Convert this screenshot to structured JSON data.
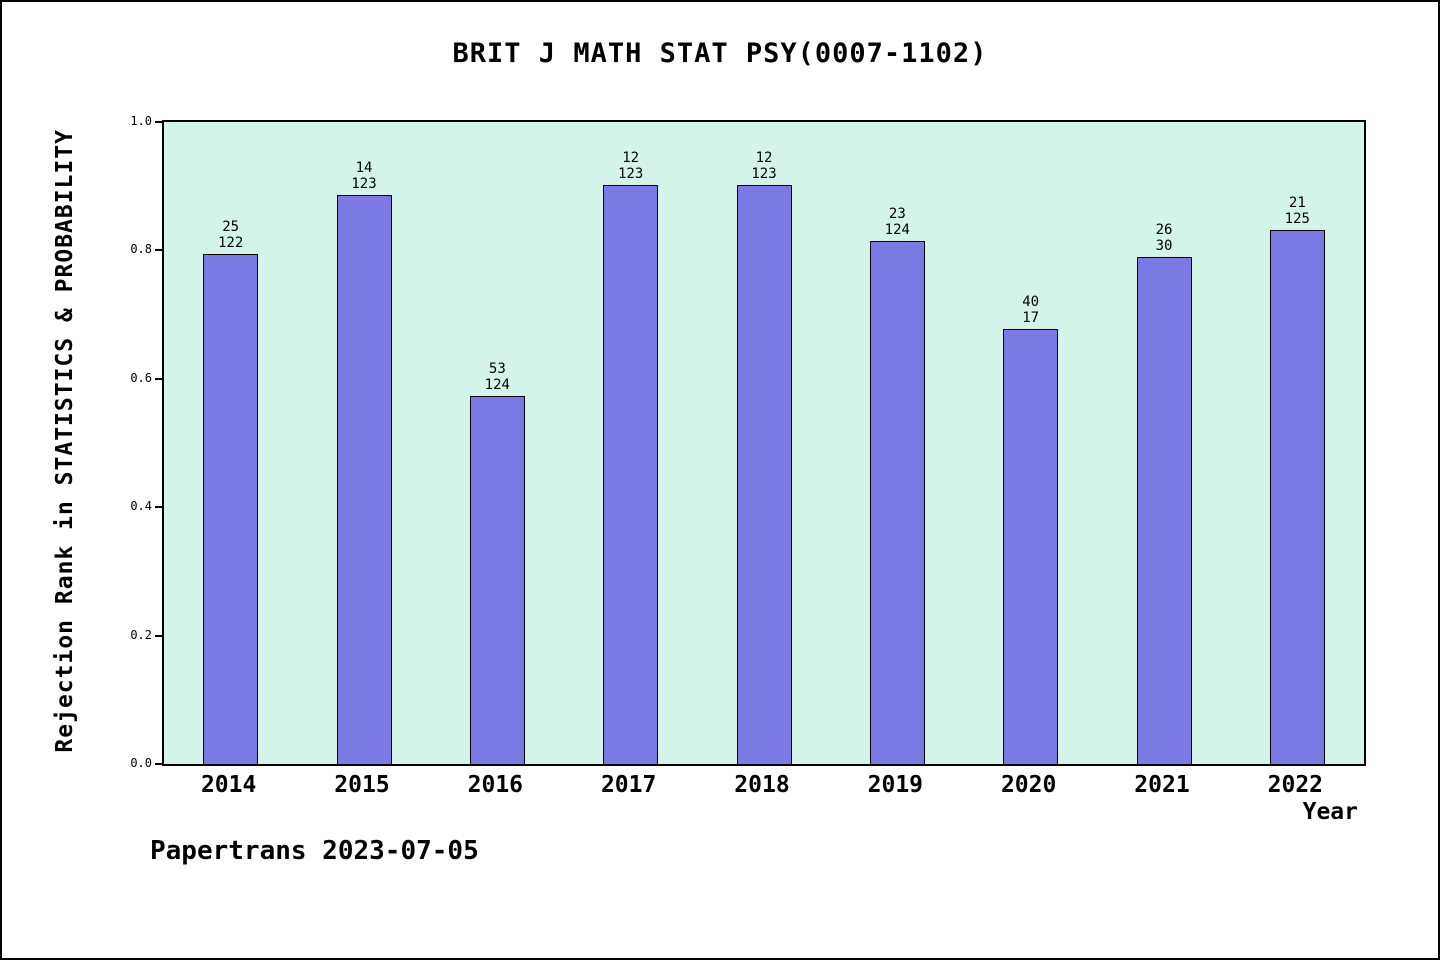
{
  "chart_data": {
    "type": "bar",
    "title": "BRIT J MATH STAT PSY(0007-1102)",
    "xlabel": "Year",
    "ylabel": "Rejection Rank in STATISTICS & PROBABILITY",
    "ylim": [
      0,
      1.0
    ],
    "yticks": [
      0.0,
      0.2,
      0.4,
      0.6,
      0.8,
      1.0
    ],
    "grid": false,
    "legend": "none",
    "categories": [
      "2014",
      "2015",
      "2016",
      "2017",
      "2018",
      "2019",
      "2020",
      "2021",
      "2022"
    ],
    "values": [
      0.795,
      0.886,
      0.573,
      0.902,
      0.902,
      0.815,
      0.678,
      0.79,
      0.832
    ],
    "bar_labels": [
      {
        "top": "25",
        "bottom": "122"
      },
      {
        "top": "14",
        "bottom": "123"
      },
      {
        "top": "53",
        "bottom": "124"
      },
      {
        "top": "12",
        "bottom": "123"
      },
      {
        "top": "12",
        "bottom": "123"
      },
      {
        "top": "23",
        "bottom": "124"
      },
      {
        "top": "40",
        "bottom": "17"
      },
      {
        "top": "26",
        "bottom": "30"
      },
      {
        "top": "21",
        "bottom": "125"
      }
    ],
    "colors": {
      "bar_fill": "#7b79e3",
      "bar_border": "#000000",
      "plot_background": "#d3f5e9",
      "page_background": "#ffffff",
      "text": "#000000"
    }
  },
  "footer": {
    "text": "Papertrans 2023-07-05"
  }
}
